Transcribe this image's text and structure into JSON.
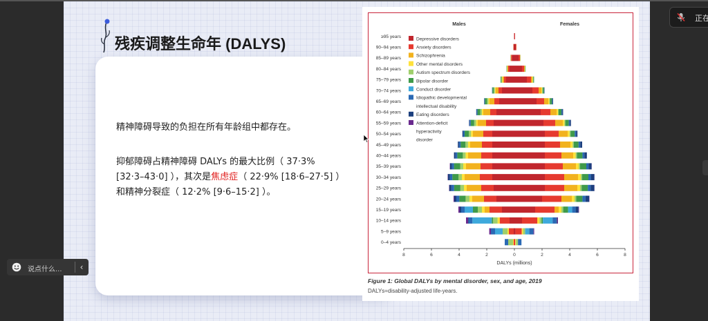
{
  "slide": {
    "title": "残疾调整生命年 (DALYS)",
    "para1": "精神障碍导致的负担在所有年龄组中都存在。",
    "para2_line1": "抑郁障碍占精神障碍  DALYs  的最大比例（ 37·3%",
    "para2_line2a": "[32·3–43·0] ），其次是",
    "para2_highlight": "焦虑症",
    "para2_line2b": "（ 22·9%  [18·6–27·5] ）",
    "para2_line3": "和精神分裂症（ 12·2% [9·6–15·2] ）。",
    "highlight_color": "#e0201f"
  },
  "chart_data": {
    "type": "bar",
    "subtype": "population-pyramid",
    "left_header": "Males",
    "right_header": "Females",
    "xlabel": "DALYs (millions)",
    "xlim": [
      -8,
      8
    ],
    "xticks": [
      "8",
      "6",
      "4",
      "2",
      "0",
      "2",
      "4",
      "6",
      "8"
    ],
    "xtick_values": [
      -8,
      -6,
      -4,
      -2,
      0,
      2,
      4,
      6,
      8
    ],
    "categories": [
      "≥95 years",
      "90–94 years",
      "85–89 years",
      "80–84 years",
      "75–79 years",
      "70–74 years",
      "65–69 years",
      "60–64 years",
      "55–59 years",
      "50–54 years",
      "45–49 years",
      "40–44 years",
      "35–39 years",
      "30–34 years",
      "25–29 years",
      "20–24 years",
      "15–19 years",
      "10–14 years",
      "5–9 years",
      "0–4 years"
    ],
    "series": [
      {
        "name": "Depressive disorders",
        "color": "#c0262d",
        "male": [
          0.02,
          0.05,
          0.18,
          0.35,
          0.6,
          0.9,
          1.1,
          1.3,
          1.5,
          1.6,
          1.6,
          1.6,
          1.6,
          1.6,
          1.5,
          1.3,
          0.9,
          0.35,
          0.05,
          0
        ],
        "female": [
          0.04,
          0.1,
          0.3,
          0.55,
          0.9,
          1.3,
          1.6,
          1.9,
          2.1,
          2.2,
          2.2,
          2.2,
          2.2,
          2.2,
          2.2,
          2.0,
          1.5,
          0.55,
          0.08,
          0
        ]
      },
      {
        "name": "Anxiety disorders",
        "color": "#e63a2f",
        "male": [
          0.01,
          0.02,
          0.06,
          0.1,
          0.15,
          0.25,
          0.35,
          0.45,
          0.55,
          0.65,
          0.75,
          0.8,
          0.85,
          0.9,
          0.9,
          0.9,
          0.9,
          0.7,
          0.35,
          0.05
        ],
        "female": [
          0.01,
          0.04,
          0.1,
          0.15,
          0.3,
          0.45,
          0.55,
          0.7,
          0.85,
          1.0,
          1.1,
          1.2,
          1.3,
          1.4,
          1.4,
          1.4,
          1.4,
          1.1,
          0.45,
          0.06
        ]
      },
      {
        "name": "Schizophrenia",
        "color": "#f2b21e",
        "male": [
          0,
          0.01,
          0.02,
          0.05,
          0.1,
          0.2,
          0.35,
          0.5,
          0.6,
          0.75,
          0.85,
          0.95,
          1.05,
          1.1,
          1.05,
          0.85,
          0.35,
          0.02,
          0,
          0
        ],
        "female": [
          0,
          0.01,
          0.02,
          0.05,
          0.1,
          0.2,
          0.3,
          0.45,
          0.55,
          0.65,
          0.75,
          0.85,
          0.95,
          1.0,
          0.95,
          0.75,
          0.3,
          0.02,
          0,
          0
        ]
      },
      {
        "name": "Other mental disorders",
        "color": "#ffe23c",
        "male": [
          0,
          0,
          0.01,
          0.02,
          0.04,
          0.06,
          0.08,
          0.1,
          0.12,
          0.14,
          0.16,
          0.18,
          0.2,
          0.2,
          0.2,
          0.2,
          0.2,
          0.15,
          0.1,
          0.05
        ],
        "female": [
          0,
          0,
          0.01,
          0.02,
          0.04,
          0.06,
          0.08,
          0.1,
          0.12,
          0.14,
          0.16,
          0.18,
          0.2,
          0.2,
          0.2,
          0.2,
          0.2,
          0.15,
          0.1,
          0.05
        ]
      },
      {
        "name": "Autism spectrum disorders",
        "color": "#9fcf6c",
        "male": [
          0,
          0,
          0.01,
          0.02,
          0.05,
          0.08,
          0.1,
          0.12,
          0.14,
          0.16,
          0.18,
          0.2,
          0.22,
          0.24,
          0.26,
          0.28,
          0.3,
          0.32,
          0.35,
          0.35
        ],
        "female": [
          0,
          0,
          0,
          0.01,
          0.02,
          0.03,
          0.04,
          0.05,
          0.06,
          0.07,
          0.08,
          0.09,
          0.1,
          0.1,
          0.11,
          0.12,
          0.13,
          0.14,
          0.15,
          0.15
        ]
      },
      {
        "name": "Bipolar disorder",
        "color": "#3f9a4a",
        "male": [
          0,
          0,
          0.01,
          0.03,
          0.06,
          0.1,
          0.15,
          0.2,
          0.25,
          0.3,
          0.35,
          0.4,
          0.45,
          0.45,
          0.45,
          0.45,
          0.35,
          0.1,
          0,
          0
        ],
        "female": [
          0,
          0,
          0.01,
          0.03,
          0.06,
          0.1,
          0.15,
          0.2,
          0.25,
          0.3,
          0.35,
          0.4,
          0.45,
          0.45,
          0.45,
          0.45,
          0.35,
          0.1,
          0,
          0
        ]
      },
      {
        "name": "Conduct disorder",
        "color": "#3ea9dc",
        "male": [
          0,
          0,
          0,
          0,
          0,
          0,
          0,
          0,
          0,
          0,
          0,
          0,
          0,
          0,
          0,
          0,
          0.6,
          1.4,
          0.55,
          0
        ],
        "female": [
          0,
          0,
          0,
          0,
          0,
          0,
          0,
          0,
          0,
          0,
          0,
          0,
          0,
          0,
          0,
          0,
          0.3,
          0.7,
          0.3,
          0
        ]
      },
      {
        "name": "Idiopathic developmental intellectual disability",
        "color": "#2a69b4",
        "male": [
          0,
          0,
          0,
          0,
          0,
          0.02,
          0.04,
          0.06,
          0.08,
          0.1,
          0.12,
          0.14,
          0.16,
          0.18,
          0.2,
          0.22,
          0.25,
          0.28,
          0.3,
          0.25
        ],
        "female": [
          0,
          0,
          0,
          0,
          0,
          0.02,
          0.04,
          0.06,
          0.08,
          0.1,
          0.12,
          0.14,
          0.16,
          0.18,
          0.2,
          0.22,
          0.25,
          0.28,
          0.3,
          0.25
        ]
      },
      {
        "name": "Eating disorders",
        "color": "#1c3f7e",
        "male": [
          0,
          0,
          0,
          0,
          0,
          0.01,
          0.02,
          0.03,
          0.04,
          0.06,
          0.08,
          0.1,
          0.12,
          0.14,
          0.15,
          0.15,
          0.1,
          0.03,
          0,
          0
        ],
        "female": [
          0,
          0,
          0,
          0,
          0,
          0.02,
          0.04,
          0.06,
          0.08,
          0.1,
          0.14,
          0.18,
          0.22,
          0.25,
          0.27,
          0.27,
          0.2,
          0.05,
          0,
          0
        ]
      },
      {
        "name": "Attention-deficit hyperactivity disorder",
        "color": "#6a2a8e",
        "male": [
          0,
          0,
          0,
          0,
          0,
          0,
          0,
          0,
          0,
          0,
          0,
          0,
          0.02,
          0.02,
          0.02,
          0.05,
          0.1,
          0.15,
          0.12,
          0
        ],
        "female": [
          0,
          0,
          0,
          0,
          0,
          0,
          0,
          0,
          0,
          0,
          0,
          0,
          0.01,
          0.01,
          0.01,
          0.02,
          0.04,
          0.06,
          0.05,
          0
        ]
      }
    ],
    "legend_placement": "top-left",
    "legend_labels": [
      [
        "Depressive disorders"
      ],
      [
        "Anxiety disorders"
      ],
      [
        "Schizophrenia"
      ],
      [
        "Other mental disorders"
      ],
      [
        "Autism spectrum disorders"
      ],
      [
        "Bipolar disorder"
      ],
      [
        "Conduct disorder"
      ],
      [
        "Idiopathic developmental",
        "intellectual disability"
      ],
      [
        "Eating disorders"
      ],
      [
        "Attention-deficit",
        "hyperactivity",
        "disorder"
      ]
    ]
  },
  "figure": {
    "caption_title": "Figure 1: Global DALYs by mental disorder, sex, and age, 2019",
    "caption_note": "DALYs=disability-adjusted life-years."
  },
  "toolbar": {
    "status_label": "正在",
    "mic_icon": "mic-muted-icon"
  },
  "comment_bar": {
    "placeholder": "说点什么...",
    "emoji_icon": "smiley-icon",
    "collapse_label": "‹"
  }
}
